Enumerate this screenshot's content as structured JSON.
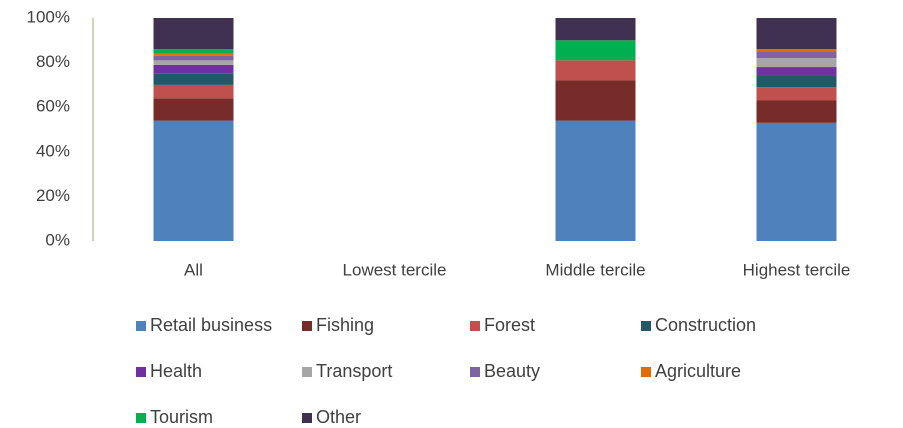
{
  "chart_data": {
    "type": "stacked_bar",
    "categories": [
      "All",
      "Lowest tercile",
      "Middle tercile",
      "Highest tercile"
    ],
    "series": [
      {
        "name": "Retail business",
        "color": "#4f81bd",
        "values": [
          54,
          null,
          54,
          53
        ]
      },
      {
        "name": "Fishing",
        "color": "#772c2a",
        "values": [
          10,
          null,
          18,
          10
        ]
      },
      {
        "name": "Forest",
        "color": "#c0504d",
        "values": [
          6,
          null,
          9,
          6
        ]
      },
      {
        "name": "Construction",
        "color": "#215968",
        "values": [
          5,
          null,
          0,
          5
        ]
      },
      {
        "name": "Health",
        "color": "#7030a0",
        "values": [
          4,
          null,
          0,
          4
        ]
      },
      {
        "name": "Transport",
        "color": "#a6a6a6",
        "values": [
          2,
          null,
          0,
          4
        ]
      },
      {
        "name": "Beauty",
        "color": "#8064a2",
        "values": [
          2,
          null,
          0,
          3
        ]
      },
      {
        "name": "Agriculture",
        "color": "#e36c0a",
        "values": [
          1,
          null,
          0,
          1
        ]
      },
      {
        "name": "Tourism",
        "color": "#00b050",
        "values": [
          2,
          null,
          9,
          0
        ]
      },
      {
        "name": "Other",
        "color": "#403152",
        "values": [
          14,
          null,
          10,
          14
        ]
      }
    ],
    "ylim": [
      0,
      100
    ],
    "yticks": [
      {
        "value": 0,
        "label": "0%"
      },
      {
        "value": 20,
        "label": "20%"
      },
      {
        "value": 40,
        "label": "40%"
      },
      {
        "value": 60,
        "label": "60%"
      },
      {
        "value": 80,
        "label": "80%"
      },
      {
        "value": 100,
        "label": "100%"
      }
    ],
    "grid": false,
    "legend": "bottom"
  }
}
